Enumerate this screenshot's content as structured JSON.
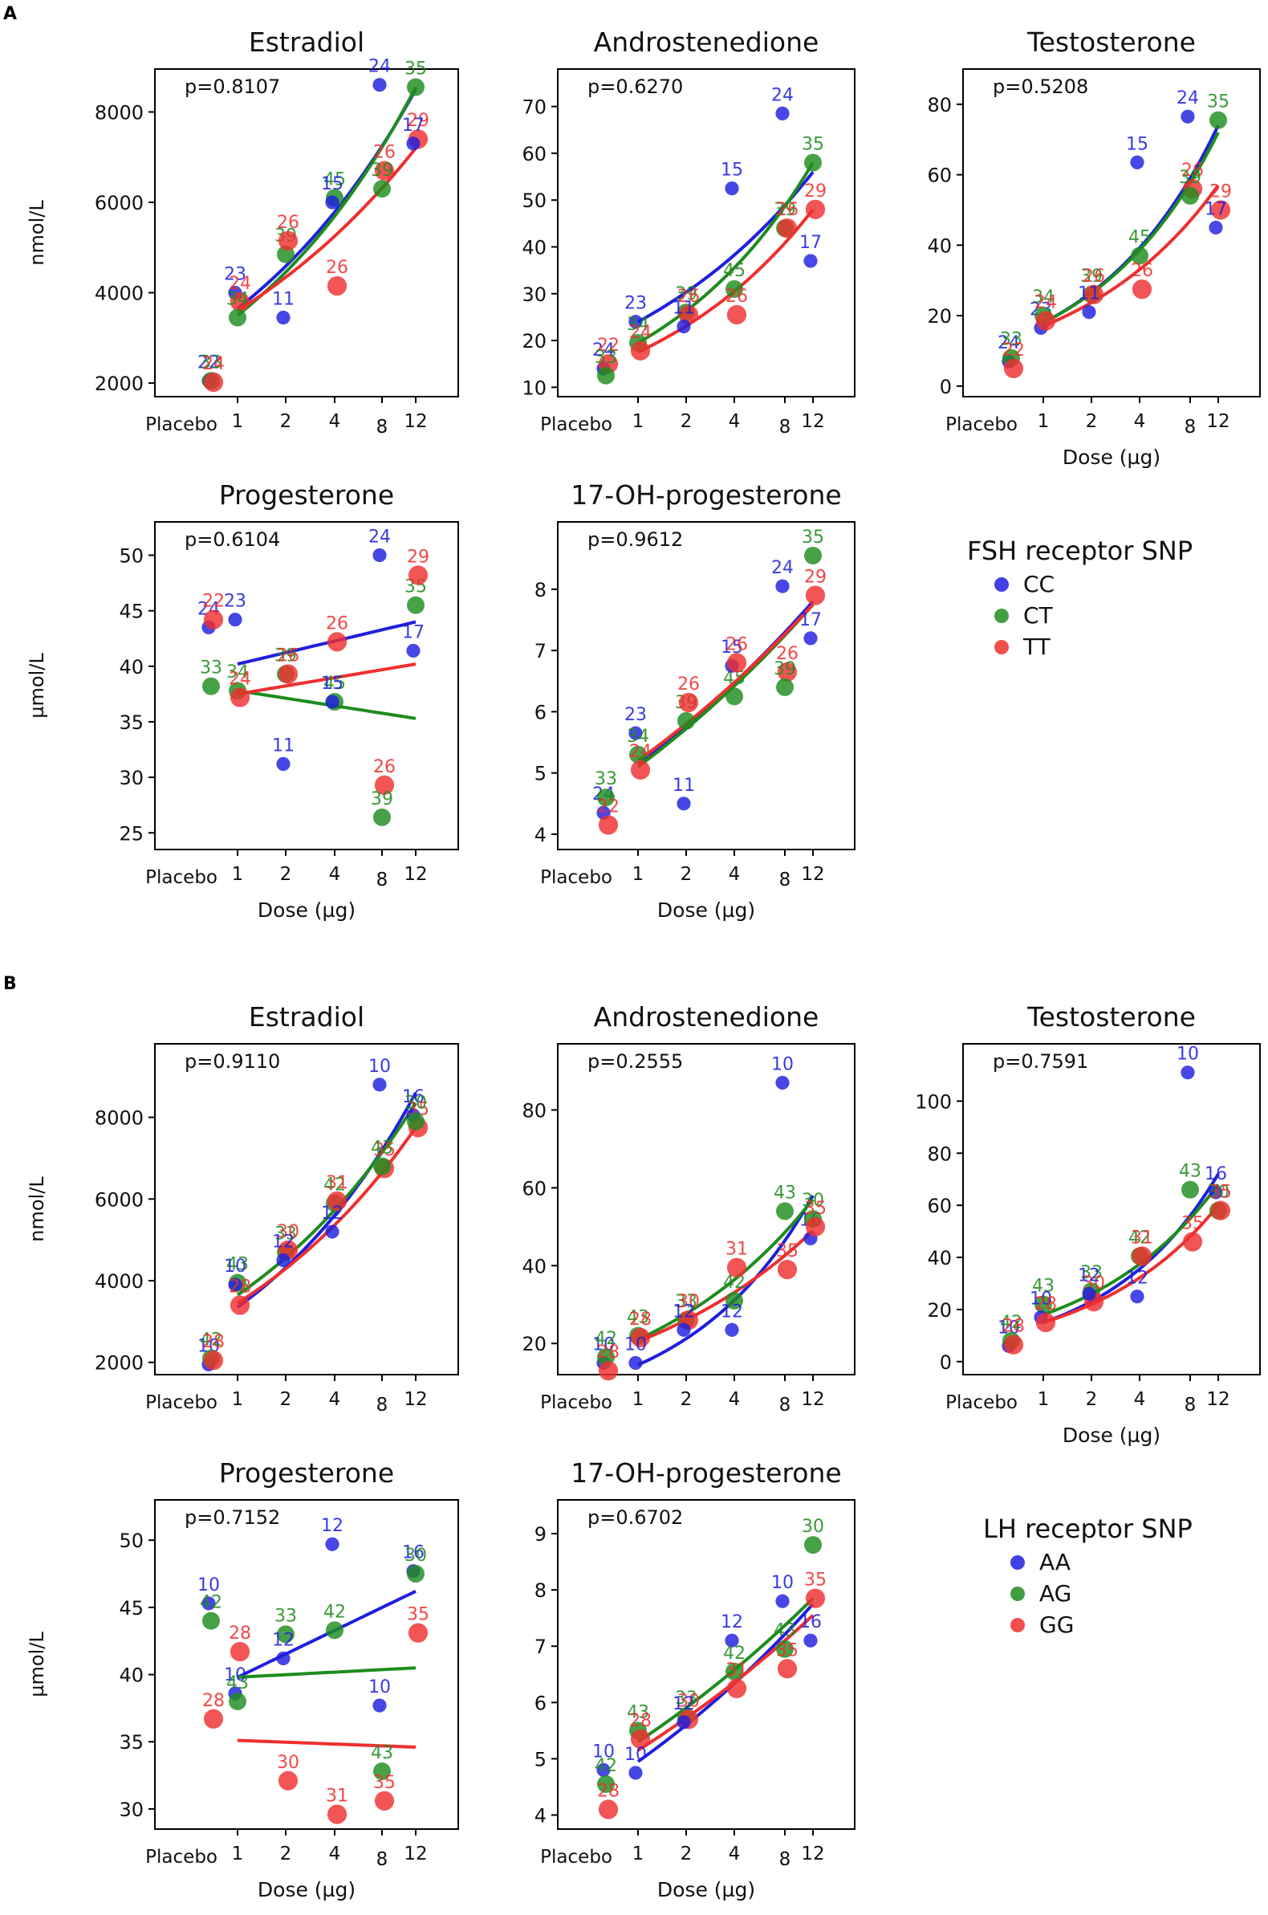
{
  "figure": {
    "panel_labels": [
      "A",
      "B"
    ],
    "dose_categories": [
      "Placebo",
      "1",
      "2",
      "4",
      "8",
      "12"
    ],
    "series_colors": {
      "s0": "#1f1fdf",
      "s1": "#1e8c1e",
      "s2": "#ef2f2f"
    },
    "dose_axis_label": "Dose (µg)",
    "mass_unit": "nmol/L",
    "micro_unit": "µmol/L"
  },
  "legends": [
    {
      "title": "FSH receptor SNP",
      "entries": [
        "CC",
        "CT",
        "TT"
      ]
    },
    {
      "title": "LH receptor SNP",
      "entries": [
        "AA",
        "AG",
        "GG"
      ]
    }
  ],
  "chart_data": [
    {
      "type": "scatter",
      "panel": "A",
      "title": "Estradiol",
      "pvalue": "p=0.8107",
      "ylabel": "nmol/L",
      "xlabel": "",
      "ylim": [
        1700,
        8950
      ],
      "yticks": [
        2000,
        4000,
        6000,
        8000
      ],
      "points": [
        [
          0,
          0,
          2050,
          "22"
        ],
        [
          0,
          1,
          2050,
          "33"
        ],
        [
          0,
          2,
          2020,
          "24"
        ],
        [
          1,
          0,
          4000,
          "23"
        ],
        [
          1,
          2,
          3800,
          "24"
        ],
        [
          1,
          1,
          3450,
          "34"
        ],
        [
          2,
          1,
          4850,
          "39"
        ],
        [
          2,
          2,
          5150,
          "26"
        ],
        [
          2,
          0,
          3450,
          "11"
        ],
        [
          3,
          1,
          6100,
          "45"
        ],
        [
          3,
          0,
          6000,
          "15"
        ],
        [
          3,
          2,
          4150,
          "26"
        ],
        [
          4,
          0,
          8600,
          "24"
        ],
        [
          4,
          2,
          6700,
          "26"
        ],
        [
          4,
          1,
          6300,
          "39"
        ],
        [
          5,
          1,
          8550,
          "35"
        ],
        [
          5,
          2,
          7400,
          "29"
        ],
        [
          5,
          0,
          7300,
          "17"
        ]
      ],
      "fits": [
        [
          3650,
          8500
        ],
        [
          3500,
          8550
        ],
        [
          3600,
          7200
        ]
      ]
    },
    {
      "type": "scatter",
      "panel": "A",
      "title": "Androstenedione",
      "pvalue": "p=0.6270",
      "ylabel": "",
      "xlabel": "",
      "ylim": [
        8,
        78
      ],
      "yticks": [
        10,
        20,
        30,
        40,
        50,
        60,
        70
      ],
      "points": [
        [
          0,
          0,
          14,
          "24"
        ],
        [
          0,
          2,
          15,
          "22"
        ],
        [
          0,
          1,
          12.5,
          "33"
        ],
        [
          1,
          0,
          24,
          "23"
        ],
        [
          1,
          1,
          19.5,
          "34"
        ],
        [
          1,
          2,
          17.8,
          "24"
        ],
        [
          2,
          1,
          26,
          "39"
        ],
        [
          2,
          2,
          25.5,
          "26"
        ],
        [
          2,
          0,
          23,
          "11"
        ],
        [
          3,
          1,
          31,
          "45"
        ],
        [
          3,
          0,
          52.5,
          "15"
        ],
        [
          3,
          2,
          25.5,
          "26"
        ],
        [
          4,
          0,
          68.5,
          "24"
        ],
        [
          4,
          1,
          44,
          "39"
        ],
        [
          4,
          2,
          44,
          "26"
        ],
        [
          5,
          1,
          58,
          "35"
        ],
        [
          5,
          2,
          48,
          "29"
        ],
        [
          5,
          0,
          37,
          "17"
        ]
      ],
      "fits": [
        [
          24,
          56
        ],
        [
          19.5,
          58
        ],
        [
          17.5,
          48
        ]
      ]
    },
    {
      "type": "scatter",
      "panel": "A",
      "title": "Testosterone",
      "pvalue": "p=0.5208",
      "ylabel": "",
      "xlabel": "Dose (µg)",
      "ylim": [
        -3,
        90
      ],
      "yticks": [
        0,
        20,
        40,
        60,
        80
      ],
      "points": [
        [
          0,
          0,
          7,
          "24"
        ],
        [
          0,
          1,
          8,
          "33"
        ],
        [
          0,
          2,
          5,
          "22"
        ],
        [
          1,
          0,
          16.5,
          "23"
        ],
        [
          1,
          1,
          20,
          "34"
        ],
        [
          1,
          2,
          18.5,
          "24"
        ],
        [
          2,
          1,
          26,
          "39"
        ],
        [
          2,
          2,
          26,
          "26"
        ],
        [
          2,
          0,
          21,
          "11"
        ],
        [
          3,
          1,
          37,
          "45"
        ],
        [
          3,
          0,
          63.5,
          "15"
        ],
        [
          3,
          2,
          27.5,
          "26"
        ],
        [
          4,
          0,
          76.5,
          "24"
        ],
        [
          4,
          2,
          56,
          "26"
        ],
        [
          4,
          1,
          54,
          "39"
        ],
        [
          5,
          1,
          75.5,
          "35"
        ],
        [
          5,
          2,
          50,
          "29"
        ],
        [
          5,
          0,
          45,
          "17"
        ]
      ],
      "fits": [
        [
          18,
          74
        ],
        [
          18,
          72
        ],
        [
          17,
          57
        ]
      ]
    },
    {
      "type": "scatter",
      "panel": "A",
      "title": "Progesterone",
      "pvalue": "p=0.6104",
      "ylabel": "µmol/L",
      "xlabel": "Dose (µg)",
      "ylim": [
        23.5,
        53
      ],
      "yticks": [
        25,
        30,
        35,
        40,
        45,
        50
      ],
      "points": [
        [
          0,
          0,
          43.5,
          "24"
        ],
        [
          0,
          2,
          44.2,
          "22"
        ],
        [
          0,
          1,
          38.2,
          "33"
        ],
        [
          1,
          0,
          44.2,
          "23"
        ],
        [
          1,
          1,
          37.8,
          "34"
        ],
        [
          1,
          2,
          37.2,
          "24"
        ],
        [
          2,
          1,
          39.3,
          "39"
        ],
        [
          2,
          2,
          39.3,
          "26"
        ],
        [
          2,
          0,
          31.2,
          "11"
        ],
        [
          3,
          1,
          36.8,
          "45"
        ],
        [
          3,
          0,
          36.8,
          "15"
        ],
        [
          3,
          2,
          42.2,
          "26"
        ],
        [
          4,
          0,
          50,
          "24"
        ],
        [
          4,
          2,
          29.3,
          "26"
        ],
        [
          4,
          1,
          26.4,
          "39"
        ],
        [
          5,
          1,
          45.5,
          "35"
        ],
        [
          5,
          2,
          48.2,
          "29"
        ],
        [
          5,
          0,
          41.4,
          "17"
        ]
      ],
      "fits": [
        [
          40.2,
          44
        ],
        [
          37.8,
          35.3
        ],
        [
          37.5,
          40.2
        ]
      ]
    },
    {
      "type": "scatter",
      "panel": "A",
      "title": "17-OH-progesterone",
      "pvalue": "p=0.9612",
      "ylabel": "",
      "xlabel": "Dose (µg)",
      "ylim": [
        3.75,
        9.1
      ],
      "yticks": [
        4,
        5,
        6,
        7,
        8
      ],
      "points": [
        [
          0,
          0,
          4.35,
          "24"
        ],
        [
          0,
          1,
          4.6,
          "33"
        ],
        [
          0,
          2,
          4.15,
          "22"
        ],
        [
          1,
          0,
          5.65,
          "23"
        ],
        [
          1,
          1,
          5.3,
          "34"
        ],
        [
          1,
          2,
          5.05,
          "24"
        ],
        [
          2,
          1,
          5.85,
          "39"
        ],
        [
          2,
          2,
          6.15,
          "26"
        ],
        [
          2,
          0,
          4.5,
          "11"
        ],
        [
          3,
          1,
          6.25,
          "45"
        ],
        [
          3,
          0,
          6.75,
          "15"
        ],
        [
          3,
          2,
          6.8,
          "26"
        ],
        [
          4,
          0,
          8.05,
          "24"
        ],
        [
          4,
          2,
          6.65,
          "26"
        ],
        [
          4,
          1,
          6.4,
          "39"
        ],
        [
          5,
          1,
          8.55,
          "35"
        ],
        [
          5,
          2,
          7.9,
          "29"
        ],
        [
          5,
          0,
          7.2,
          "17"
        ]
      ],
      "fits": [
        [
          5.15,
          7.8
        ],
        [
          5.1,
          7.75
        ],
        [
          5.2,
          7.75
        ]
      ]
    },
    {
      "type": "scatter",
      "panel": "B",
      "title": "Estradiol",
      "pvalue": "p=0.9110",
      "ylabel": "nmol/L",
      "xlabel": "",
      "ylim": [
        1700,
        9800
      ],
      "yticks": [
        2000,
        4000,
        6000,
        8000
      ],
      "points": [
        [
          0,
          0,
          1950,
          "10"
        ],
        [
          0,
          1,
          2100,
          "42"
        ],
        [
          0,
          2,
          2050,
          "28"
        ],
        [
          1,
          1,
          3950,
          "43"
        ],
        [
          1,
          0,
          3900,
          "10"
        ],
        [
          1,
          2,
          3400,
          "28"
        ],
        [
          2,
          1,
          4700,
          "33"
        ],
        [
          2,
          2,
          4750,
          "30"
        ],
        [
          2,
          0,
          4500,
          "12"
        ],
        [
          3,
          1,
          5900,
          "42"
        ],
        [
          3,
          2,
          5950,
          "31"
        ],
        [
          3,
          0,
          5200,
          "12"
        ],
        [
          4,
          0,
          8800,
          "10"
        ],
        [
          4,
          2,
          6750,
          "35"
        ],
        [
          4,
          1,
          6800,
          "43"
        ],
        [
          5,
          0,
          8050,
          "16"
        ],
        [
          5,
          2,
          7750,
          "35"
        ],
        [
          5,
          1,
          7900,
          "30"
        ]
      ],
      "fits": [
        [
          3350,
          8600
        ],
        [
          3650,
          8350
        ],
        [
          3450,
          7750
        ]
      ]
    },
    {
      "type": "scatter",
      "panel": "B",
      "title": "Androstenedione",
      "pvalue": "p=0.2555",
      "ylabel": "",
      "xlabel": "",
      "ylim": [
        12,
        97
      ],
      "yticks": [
        20,
        40,
        60,
        80
      ],
      "points": [
        [
          0,
          0,
          15,
          "10"
        ],
        [
          0,
          1,
          16.5,
          "42"
        ],
        [
          0,
          2,
          13,
          "28"
        ],
        [
          1,
          1,
          22,
          "43"
        ],
        [
          1,
          2,
          21.5,
          "28"
        ],
        [
          1,
          0,
          15,
          "10"
        ],
        [
          2,
          1,
          26,
          "33"
        ],
        [
          2,
          2,
          26,
          "30"
        ],
        [
          2,
          0,
          23.5,
          "12"
        ],
        [
          3,
          1,
          31,
          "42"
        ],
        [
          3,
          2,
          39.5,
          "31"
        ],
        [
          3,
          0,
          23.5,
          "12"
        ],
        [
          4,
          0,
          87,
          "10"
        ],
        [
          4,
          1,
          54,
          "43"
        ],
        [
          4,
          2,
          39,
          "35"
        ],
        [
          5,
          0,
          47,
          "16"
        ],
        [
          5,
          1,
          52,
          "30"
        ],
        [
          5,
          2,
          50,
          "35"
        ]
      ],
      "fits": [
        [
          14.5,
          58
        ],
        [
          21,
          57
        ],
        [
          20.5,
          49
        ]
      ]
    },
    {
      "type": "scatter",
      "panel": "B",
      "title": "Testosterone",
      "pvalue": "p=0.7591",
      "ylabel": "",
      "xlabel": "Dose (µg)",
      "ylim": [
        -5,
        122
      ],
      "yticks": [
        0,
        20,
        40,
        60,
        80,
        100
      ],
      "points": [
        [
          0,
          0,
          6,
          "10"
        ],
        [
          0,
          1,
          8,
          "42"
        ],
        [
          0,
          2,
          6.5,
          "28"
        ],
        [
          1,
          1,
          22,
          "43"
        ],
        [
          1,
          0,
          17,
          "10"
        ],
        [
          1,
          2,
          15,
          "28"
        ],
        [
          2,
          1,
          27,
          "33"
        ],
        [
          2,
          2,
          23,
          "30"
        ],
        [
          2,
          0,
          26,
          "12"
        ],
        [
          3,
          1,
          40.5,
          "42"
        ],
        [
          3,
          2,
          40.5,
          "31"
        ],
        [
          3,
          0,
          25,
          "12"
        ],
        [
          4,
          0,
          111,
          "10"
        ],
        [
          4,
          1,
          66,
          "43"
        ],
        [
          4,
          2,
          46,
          "35"
        ],
        [
          5,
          0,
          65,
          "16"
        ],
        [
          5,
          1,
          58,
          "30"
        ],
        [
          5,
          2,
          58,
          "35"
        ]
      ],
      "fits": [
        [
          15,
          72
        ],
        [
          18,
          68
        ],
        [
          15,
          60
        ]
      ]
    },
    {
      "type": "scatter",
      "panel": "B",
      "title": "Progesterone",
      "pvalue": "p=0.7152",
      "ylabel": "µmol/L",
      "xlabel": "Dose (µg)",
      "ylim": [
        28.5,
        53
      ],
      "yticks": [
        30,
        35,
        40,
        45,
        50
      ],
      "points": [
        [
          0,
          0,
          45.3,
          "10"
        ],
        [
          0,
          1,
          44,
          "42"
        ],
        [
          0,
          2,
          36.7,
          "28"
        ],
        [
          1,
          2,
          41.7,
          "28"
        ],
        [
          1,
          0,
          38.6,
          "10"
        ],
        [
          1,
          1,
          38,
          "43"
        ],
        [
          2,
          1,
          43,
          "33"
        ],
        [
          2,
          0,
          41.2,
          "12"
        ],
        [
          2,
          2,
          32.1,
          "30"
        ],
        [
          3,
          0,
          49.7,
          "12"
        ],
        [
          3,
          1,
          43.3,
          "42"
        ],
        [
          3,
          2,
          29.6,
          "31"
        ],
        [
          4,
          0,
          37.7,
          "10"
        ],
        [
          4,
          1,
          32.8,
          "43"
        ],
        [
          4,
          2,
          30.6,
          "35"
        ],
        [
          5,
          0,
          47.7,
          "16"
        ],
        [
          5,
          1,
          47.5,
          "30"
        ],
        [
          5,
          2,
          43.1,
          "35"
        ]
      ],
      "fits": [
        [
          39.8,
          46.2
        ],
        [
          39.8,
          40.5
        ],
        [
          35.1,
          34.6
        ]
      ]
    },
    {
      "type": "scatter",
      "panel": "B",
      "title": "17-OH-progesterone",
      "pvalue": "p=0.6702",
      "ylabel": "",
      "xlabel": "Dose (µg)",
      "ylim": [
        3.75,
        9.6
      ],
      "yticks": [
        4,
        5,
        6,
        7,
        8,
        9
      ],
      "points": [
        [
          0,
          0,
          4.8,
          "10"
        ],
        [
          0,
          1,
          4.55,
          "42"
        ],
        [
          0,
          2,
          4.1,
          "28"
        ],
        [
          1,
          1,
          5.5,
          "43"
        ],
        [
          1,
          2,
          5.35,
          "28"
        ],
        [
          1,
          0,
          4.75,
          "10"
        ],
        [
          2,
          1,
          5.75,
          "33"
        ],
        [
          2,
          2,
          5.7,
          "30"
        ],
        [
          2,
          0,
          5.65,
          "12"
        ],
        [
          3,
          0,
          7.1,
          "12"
        ],
        [
          3,
          1,
          6.55,
          "42"
        ],
        [
          3,
          2,
          6.25,
          "31"
        ],
        [
          4,
          0,
          7.8,
          "10"
        ],
        [
          4,
          1,
          6.95,
          "43"
        ],
        [
          4,
          2,
          6.6,
          "35"
        ],
        [
          5,
          1,
          8.8,
          "30"
        ],
        [
          5,
          2,
          7.85,
          "35"
        ],
        [
          5,
          0,
          7.1,
          "16"
        ]
      ],
      "fits": [
        [
          4.95,
          7.75
        ],
        [
          5.3,
          7.85
        ],
        [
          5.15,
          7.55
        ]
      ]
    }
  ]
}
